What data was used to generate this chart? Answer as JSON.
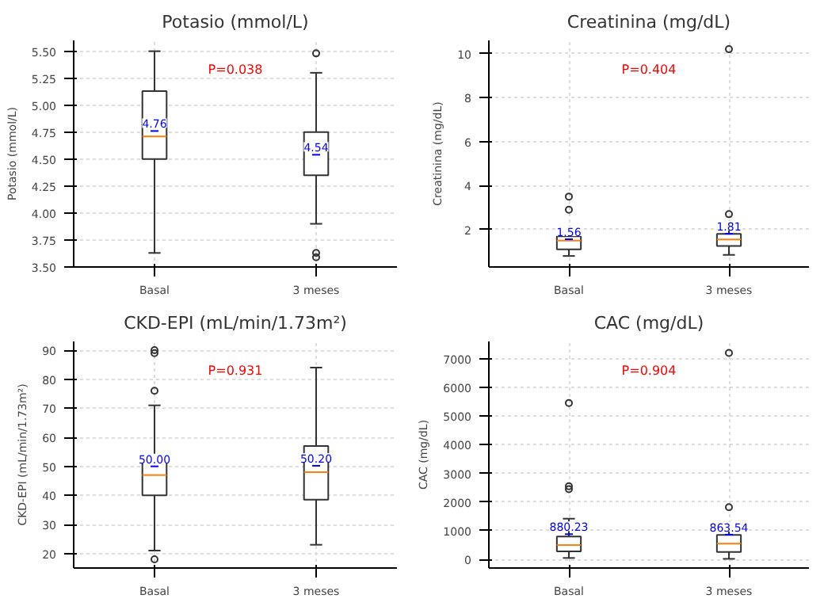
{
  "chart_data": [
    {
      "type": "box",
      "title": "Potasio (mmol/L)",
      "ylabel": "Potasio (mmol/L)",
      "categories": [
        "Basal",
        "3 meses"
      ],
      "boxes": [
        {
          "low": 3.63,
          "q1": 4.5,
          "median": 4.71,
          "q3": 5.13,
          "high": 5.5,
          "mean": 4.76
        },
        {
          "low": 3.9,
          "q1": 4.35,
          "median": 4.6,
          "q3": 4.75,
          "high": 5.3,
          "mean": 4.54,
          "outliers": [
            5.48,
            3.63,
            3.59
          ]
        }
      ],
      "value_labels": [
        "4.76",
        "4.54"
      ],
      "ylim": [
        3.5,
        5.6
      ],
      "yticks": [
        {
          "value": 3.5,
          "label": "3.50"
        },
        {
          "value": 3.75,
          "label": "3.75"
        },
        {
          "value": 4.0,
          "label": "4.00"
        },
        {
          "value": 4.25,
          "label": "4.25"
        },
        {
          "value": 4.5,
          "label": "4.50"
        },
        {
          "value": 4.75,
          "label": "4.75"
        },
        {
          "value": 5.0,
          "label": "5.00"
        },
        {
          "value": 5.25,
          "label": "5.25"
        },
        {
          "value": 5.5,
          "label": "5.50"
        }
      ],
      "grid": true,
      "annotations": [
        "P=0.038"
      ]
    },
    {
      "type": "box",
      "title": "Creatinina (mg/dL)",
      "ylabel": "Creatinina (mg/dL)",
      "categories": [
        "Basal",
        "3 meses"
      ],
      "boxes": [
        {
          "low": 0.8,
          "q1": 1.1,
          "median": 1.5,
          "q3": 1.7,
          "high": 2.05,
          "mean": 1.56,
          "outliers": [
            2.9,
            3.5
          ]
        },
        {
          "low": 0.85,
          "q1": 1.25,
          "median": 1.55,
          "q3": 1.8,
          "high": 2.3,
          "mean": 1.81,
          "outliers": [
            2.7,
            10.2
          ]
        }
      ],
      "value_labels": [
        "1.56",
        "1.81"
      ],
      "ylim": [
        0.3,
        10.6
      ],
      "yticks": [
        2,
        4,
        6,
        8,
        10
      ],
      "grid": true,
      "annotations": [
        "P=0.404"
      ]
    },
    {
      "type": "box",
      "title": "CKD-EPI (mL/min/1.73m²)",
      "ylabel": "CKD-EPI (mL/min/1.73m²)",
      "categories": [
        "Basal",
        "3 meses"
      ],
      "boxes": [
        {
          "low": 21,
          "q1": 40,
          "median": 47,
          "q3": 53.5,
          "high": 71,
          "mean": 50.0,
          "outliers": [
            76,
            89,
            90,
            18
          ]
        },
        {
          "low": 23,
          "q1": 38.5,
          "median": 48,
          "q3": 57,
          "high": 84,
          "mean": 50.2
        }
      ],
      "value_labels": [
        "50.00",
        "50.20"
      ],
      "ylim": [
        15,
        93
      ],
      "yticks": [
        20,
        30,
        40,
        50,
        60,
        70,
        80,
        90
      ],
      "grid": true,
      "annotations": [
        "P=0.931"
      ]
    },
    {
      "type": "box",
      "title": "CAC (mg/dL)",
      "ylabel": "CAC (mg/dL)",
      "categories": [
        "Basal",
        "3 meses"
      ],
      "boxes": [
        {
          "low": 50,
          "q1": 280,
          "median": 500,
          "q3": 800,
          "high": 1420,
          "mean": 880.23,
          "outliers": [
            2450,
            2550,
            5450
          ]
        },
        {
          "low": 20,
          "q1": 260,
          "median": 550,
          "q3": 850,
          "high": 1270,
          "mean": 863.54,
          "outliers": [
            1820,
            7200
          ]
        }
      ],
      "value_labels": [
        "880.23",
        "863.54"
      ],
      "ylim": [
        -300,
        7600
      ],
      "yticks": [
        0,
        1000,
        2000,
        3000,
        4000,
        5000,
        6000,
        7000
      ],
      "grid": true,
      "annotations": [
        "P=0.904"
      ]
    }
  ]
}
